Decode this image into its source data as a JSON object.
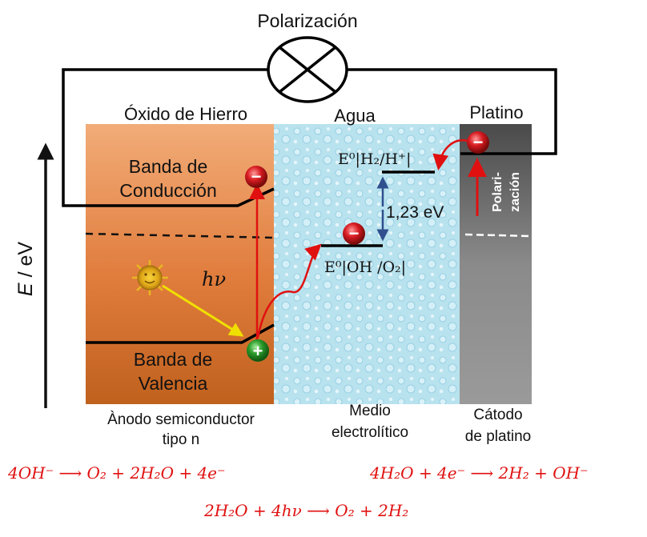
{
  "polarization_title": "Polarización",
  "regions": {
    "anode": {
      "title": "Óxido de Hierro",
      "caption_line1": "Ànodo semiconductor",
      "caption_line2": "tipo n"
    },
    "water": {
      "title": "Agua",
      "caption_line1": "Medio",
      "caption_line2": "electrolítico"
    },
    "cathode": {
      "title": "Platino",
      "caption_line1": "Cátodo",
      "caption_line2": "de platino"
    }
  },
  "bands": {
    "conduction_line1": "Banda de",
    "conduction_line2": "Conducción",
    "valence_line1": "Banda de",
    "valence_line2": "Valencia"
  },
  "energy_axis": {
    "symbol": "E",
    "unit": "/ eV"
  },
  "photon_label": "hν",
  "potentials": {
    "h2_label": "E⁰|H₂/H⁺|",
    "oh_label": "E⁰|OH /O₂|",
    "gap_label": "1,23 eV"
  },
  "cathode_polarization_line1": "Polari-",
  "cathode_polarization_line2": "zación",
  "charges": {
    "electron": "−",
    "hole": "+"
  },
  "equations": {
    "anode": "4OH⁻  ⟶  O₂ +  2H₂O +  4e⁻",
    "cathode": "4H₂O +  4e⁻  ⟶  2H₂ +  OH⁻",
    "overall": "2H₂O + 4hν ⟶  O₂ + 2H₂"
  },
  "colors": {
    "arrow_red": "#e01010",
    "electron_red": "#c8141a",
    "hole_green": "#2a9a2a",
    "photon_yellow": "#f0e000",
    "gap_arrow_blue": "#2f4f8f"
  }
}
